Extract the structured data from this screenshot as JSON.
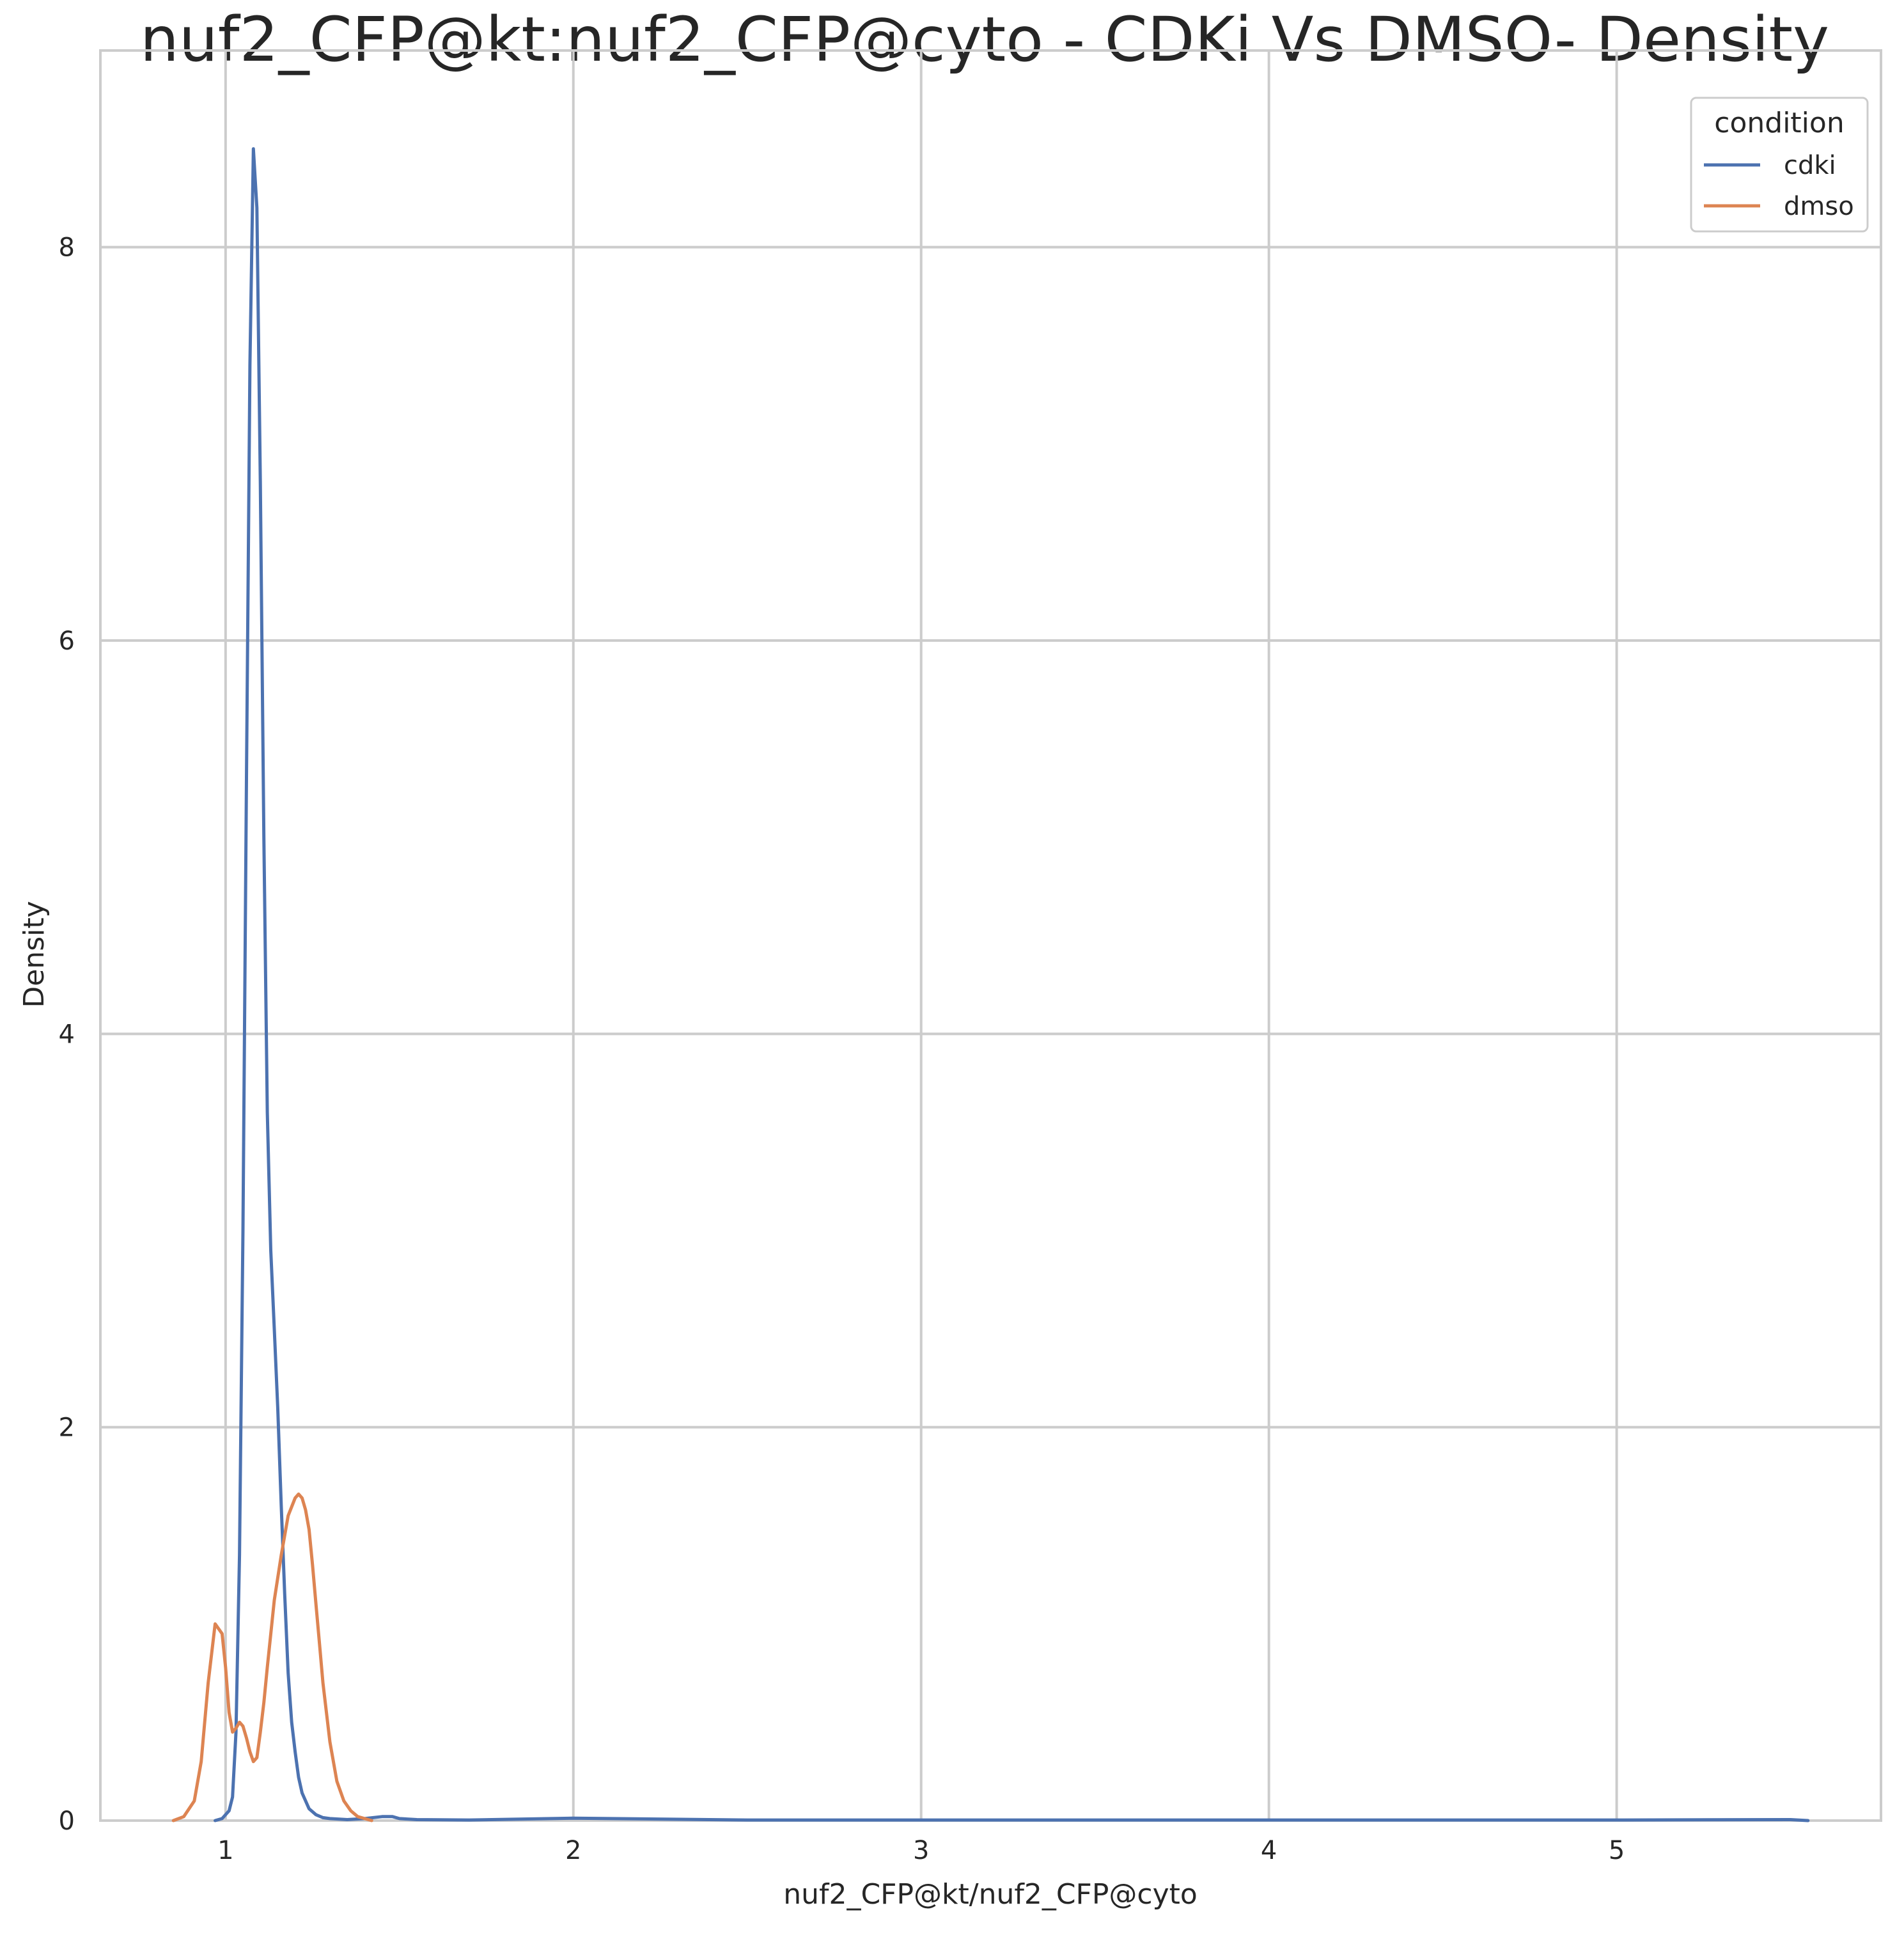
{
  "chart_data": {
    "type": "line",
    "title": "nuf2_CFP@kt:nuf2_CFP@cyto - CDKi Vs DMSO- Density",
    "xlabel": "nuf2_CFP@kt/nuf2_CFP@cyto",
    "ylabel": "Density",
    "xlim": [
      0.64,
      5.76
    ],
    "ylim": [
      0,
      9.0
    ],
    "xticks": [
      1,
      2,
      3,
      4,
      5
    ],
    "xtick_labels": [
      "1",
      "2",
      "3",
      "4",
      "5"
    ],
    "yticks": [
      0,
      2,
      4,
      6,
      8
    ],
    "ytick_labels": [
      "0",
      "2",
      "4",
      "6",
      "8"
    ],
    "grid": true,
    "legend": {
      "title": "condition",
      "placement": "top-right"
    },
    "series": [
      {
        "name": "cdki",
        "color": "#4c72b0",
        "x": [
          0.97,
          0.99,
          1.01,
          1.02,
          1.03,
          1.04,
          1.05,
          1.06,
          1.07,
          1.08,
          1.09,
          1.1,
          1.11,
          1.12,
          1.13,
          1.14,
          1.15,
          1.16,
          1.17,
          1.18,
          1.19,
          1.2,
          1.21,
          1.22,
          1.24,
          1.26,
          1.28,
          1.3,
          1.35,
          1.4,
          1.45,
          1.48,
          1.5,
          1.55,
          1.7,
          2.0,
          2.5,
          3.0,
          4.0,
          5.0,
          5.5,
          5.55
        ],
        "y": [
          0.0,
          0.01,
          0.05,
          0.12,
          0.45,
          1.35,
          3.0,
          5.3,
          7.4,
          8.5,
          8.2,
          6.8,
          5.0,
          3.6,
          2.9,
          2.5,
          2.1,
          1.6,
          1.15,
          0.75,
          0.5,
          0.35,
          0.22,
          0.14,
          0.06,
          0.03,
          0.015,
          0.01,
          0.005,
          0.01,
          0.02,
          0.02,
          0.01,
          0.005,
          0.003,
          0.012,
          0.003,
          0.003,
          0.003,
          0.003,
          0.005,
          0.0
        ]
      },
      {
        "name": "dmso",
        "color": "#dd8452",
        "x": [
          0.85,
          0.88,
          0.91,
          0.93,
          0.95,
          0.97,
          0.99,
          1.0,
          1.01,
          1.02,
          1.03,
          1.04,
          1.05,
          1.06,
          1.07,
          1.08,
          1.09,
          1.1,
          1.11,
          1.12,
          1.14,
          1.16,
          1.18,
          1.2,
          1.21,
          1.22,
          1.23,
          1.24,
          1.25,
          1.26,
          1.27,
          1.28,
          1.3,
          1.32,
          1.34,
          1.36,
          1.38,
          1.4,
          1.42
        ],
        "y": [
          0.0,
          0.02,
          0.1,
          0.3,
          0.7,
          1.0,
          0.95,
          0.78,
          0.55,
          0.45,
          0.47,
          0.5,
          0.48,
          0.42,
          0.35,
          0.3,
          0.32,
          0.45,
          0.6,
          0.78,
          1.12,
          1.35,
          1.55,
          1.64,
          1.66,
          1.64,
          1.58,
          1.48,
          1.3,
          1.1,
          0.9,
          0.7,
          0.4,
          0.2,
          0.1,
          0.05,
          0.02,
          0.01,
          0.0
        ]
      }
    ]
  }
}
